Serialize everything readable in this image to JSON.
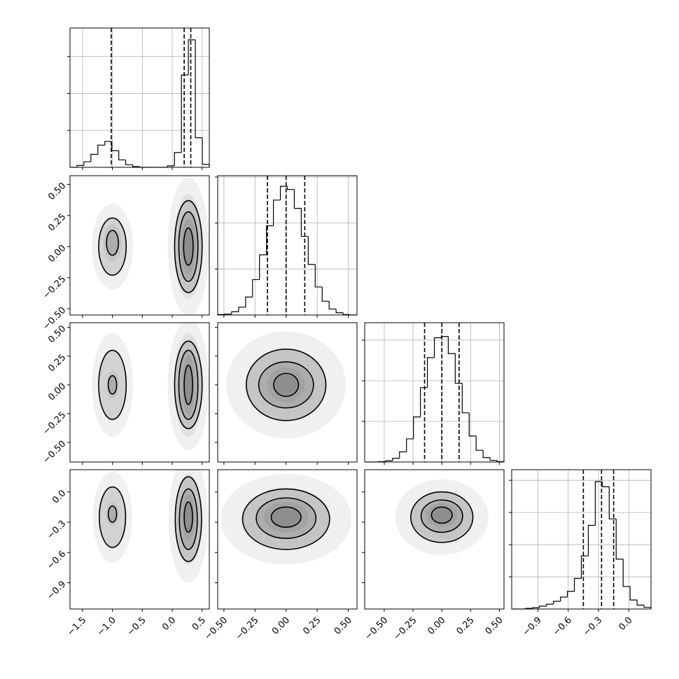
{
  "chart_data": {
    "type": "corner",
    "color": "#000000",
    "grid": true,
    "params": [
      {
        "lim": [
          -1.71,
          0.62
        ],
        "ticks": [
          {
            "value": -1.5,
            "label": "−1.5"
          },
          {
            "value": -1.0,
            "label": "−1.0"
          },
          {
            "value": -0.5,
            "label": "−0.5"
          },
          {
            "value": 0.0,
            "label": "0.0"
          },
          {
            "value": 0.5,
            "label": "0.5"
          }
        ]
      },
      {
        "lim": [
          -0.55,
          0.57
        ],
        "ticks": [
          {
            "value": -0.5,
            "label": "−0.50"
          },
          {
            "value": -0.25,
            "label": "−0.25"
          },
          {
            "value": 0.0,
            "label": "0.00"
          },
          {
            "value": 0.25,
            "label": "0.25"
          },
          {
            "value": 0.5,
            "label": "0.50"
          }
        ]
      },
      {
        "lim": [
          -0.67,
          0.54
        ],
        "ticks": [
          {
            "value": -0.5,
            "label": "−0.50"
          },
          {
            "value": -0.25,
            "label": "−0.25"
          },
          {
            "value": 0.0,
            "label": "0.00"
          },
          {
            "value": 0.25,
            "label": "0.25"
          },
          {
            "value": 0.5,
            "label": "0.50"
          }
        ]
      },
      {
        "lim": [
          -1.16,
          0.22
        ],
        "ticks": [
          {
            "value": -0.9,
            "label": "−0.9"
          },
          {
            "value": -0.6,
            "label": "−0.6"
          },
          {
            "value": -0.3,
            "label": "−0.3"
          },
          {
            "value": 0.0,
            "label": "0.0"
          }
        ]
      }
    ],
    "histograms": [
      {
        "bins": [
          -1.71,
          -1.5935,
          -1.477,
          -1.3605,
          -1.244,
          -1.1275,
          -1.011,
          -0.8945,
          -0.778,
          -0.6615,
          -0.545,
          -0.4285,
          -0.312,
          -0.1955,
          -0.079,
          0.0375,
          0.154,
          0.2705,
          0.387,
          0.5035,
          0.62
        ],
        "counts": [
          0,
          0.05,
          0.15,
          0.35,
          0.6,
          0.7,
          0.45,
          0.2,
          0.07,
          0.02,
          0,
          0,
          0,
          0,
          0.04,
          0.4,
          2.5,
          3.45,
          0.8,
          0.08
        ],
        "ylim": [
          0,
          3.77
        ],
        "yticks": [
          1,
          2,
          3
        ],
        "quantiles": [
          -1.02,
          0.2,
          0.31
        ]
      },
      {
        "bins": [
          -0.55,
          -0.494,
          -0.438,
          -0.382,
          -0.326,
          -0.27,
          -0.214,
          -0.158,
          -0.102,
          -0.046,
          0.01,
          0.066,
          0.122,
          0.178,
          0.234,
          0.29,
          0.346,
          0.402,
          0.458,
          0.514,
          0.57
        ],
        "counts": [
          0.01,
          0.02,
          0.07,
          0.17,
          0.39,
          0.77,
          1.31,
          1.94,
          2.5,
          2.8,
          2.73,
          2.32,
          1.71,
          1.1,
          0.61,
          0.3,
          0.13,
          0.05,
          0.01,
          0
        ],
        "ylim": [
          0,
          3.03
        ],
        "yticks": [
          1,
          2,
          3
        ],
        "quantiles": [
          -0.15,
          0.0,
          0.15
        ]
      },
      {
        "bins": [
          -0.67,
          -0.6095,
          -0.549,
          -0.4885,
          -0.428,
          -0.3675,
          -0.307,
          -0.2465,
          -0.186,
          -0.1255,
          -0.065,
          -0.0045,
          0.056,
          0.1165,
          0.177,
          0.2375,
          0.298,
          0.3585,
          0.419,
          0.4795,
          0.54
        ],
        "counts": [
          0,
          0,
          0.01,
          0.03,
          0.09,
          0.25,
          0.57,
          1.11,
          1.83,
          2.57,
          3.06,
          3.09,
          2.67,
          1.94,
          1.21,
          0.64,
          0.29,
          0.11,
          0.04,
          0.01
        ],
        "ylim": [
          0,
          3.43
        ],
        "yticks": [
          1,
          2,
          3
        ],
        "quantiles": [
          -0.15,
          0.0,
          0.15
        ]
      },
      {
        "bins": [
          -1.16,
          -1.091,
          -1.022,
          -0.953,
          -0.884,
          -0.815,
          -0.746,
          -0.677,
          -0.608,
          -0.539,
          -0.47,
          -0.401,
          -0.332,
          -0.263,
          -0.194,
          -0.125,
          -0.056,
          0.013,
          0.082,
          0.151,
          0.22
        ],
        "counts": [
          0,
          0,
          0.02,
          0.04,
          0.09,
          0.15,
          0.24,
          0.37,
          0.55,
          0.95,
          1.65,
          2.6,
          3.96,
          3.8,
          2.8,
          1.55,
          0.7,
          0.28,
          0.12,
          0.05
        ],
        "ylim": [
          0,
          4.33
        ],
        "yticks": [
          1,
          2,
          3,
          4
        ],
        "quantiles": [
          -0.45,
          -0.27,
          -0.15
        ]
      }
    ],
    "contour_panels": [
      {
        "row": 1,
        "col": 0,
        "contours": [
          {
            "cx": -1.0,
            "cy": 0.0,
            "rx": 0.23,
            "ry": 0.23
          },
          {
            "cx": -1.0,
            "cy": 0.03,
            "rx": 0.1,
            "ry": 0.1
          },
          {
            "cx": 0.27,
            "cy": 0.0,
            "rx": 0.23,
            "ry": 0.37
          },
          {
            "cx": 0.27,
            "cy": 0.0,
            "rx": 0.16,
            "ry": 0.28
          },
          {
            "cx": 0.27,
            "cy": 0.0,
            "rx": 0.08,
            "ry": 0.15
          }
        ]
      },
      {
        "row": 2,
        "col": 0,
        "contours": [
          {
            "cx": -1.0,
            "cy": 0.0,
            "rx": 0.23,
            "ry": 0.3
          },
          {
            "cx": -1.0,
            "cy": 0.0,
            "rx": 0.07,
            "ry": 0.08
          },
          {
            "cx": 0.27,
            "cy": 0.0,
            "rx": 0.23,
            "ry": 0.38
          },
          {
            "cx": 0.27,
            "cy": 0.0,
            "rx": 0.16,
            "ry": 0.3
          },
          {
            "cx": 0.27,
            "cy": 0.0,
            "rx": 0.07,
            "ry": 0.17
          }
        ]
      },
      {
        "row": 2,
        "col": 1,
        "contours": [
          {
            "cx": 0.0,
            "cy": 0.0,
            "rx": 0.32,
            "ry": 0.31
          },
          {
            "cx": 0.0,
            "cy": 0.0,
            "rx": 0.22,
            "ry": 0.2
          },
          {
            "cx": 0.0,
            "cy": 0.0,
            "rx": 0.1,
            "ry": 0.1
          }
        ]
      },
      {
        "row": 3,
        "col": 0,
        "contours": [
          {
            "cx": -1.0,
            "cy": -0.25,
            "rx": 0.22,
            "ry": 0.3
          },
          {
            "cx": -1.0,
            "cy": -0.22,
            "rx": 0.07,
            "ry": 0.08
          },
          {
            "cx": 0.27,
            "cy": -0.27,
            "rx": 0.22,
            "ry": 0.42
          },
          {
            "cx": 0.27,
            "cy": -0.27,
            "rx": 0.15,
            "ry": 0.3
          },
          {
            "cx": 0.27,
            "cy": -0.25,
            "rx": 0.07,
            "ry": 0.15
          }
        ]
      },
      {
        "row": 3,
        "col": 1,
        "contours": [
          {
            "cx": 0.0,
            "cy": -0.27,
            "rx": 0.35,
            "ry": 0.3
          },
          {
            "cx": 0.0,
            "cy": -0.26,
            "rx": 0.24,
            "ry": 0.2
          },
          {
            "cx": 0.0,
            "cy": -0.25,
            "rx": 0.12,
            "ry": 0.1
          }
        ]
      },
      {
        "row": 3,
        "col": 2,
        "contours": [
          {
            "cx": 0.0,
            "cy": -0.25,
            "rx": 0.27,
            "ry": 0.25
          },
          {
            "cx": 0.0,
            "cy": -0.24,
            "rx": 0.18,
            "ry": 0.16
          },
          {
            "cx": 0.0,
            "cy": -0.23,
            "rx": 0.09,
            "ry": 0.08
          }
        ]
      }
    ]
  }
}
